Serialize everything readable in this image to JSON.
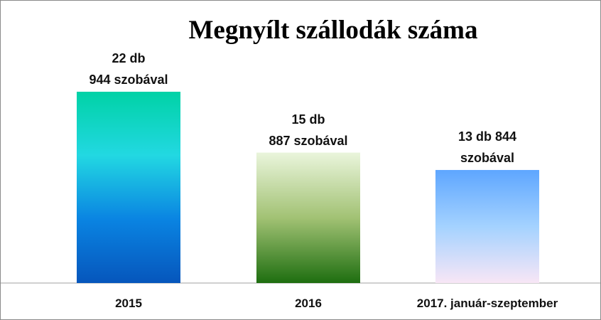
{
  "chart_data": {
    "type": "bar",
    "title": "Megnyílt szállodák száma",
    "categories": [
      "2015",
      "2016",
      "2017. január-szeptember"
    ],
    "values": [
      22,
      15,
      13
    ],
    "value_labels": [
      "22 db\n944 szobával",
      "15 db\n887 szobával",
      "13 db 844\nszobával"
    ],
    "colors": [
      [
        "#00d2a6",
        "#22d8e2",
        "#0a84e2",
        "#0656bc"
      ],
      [
        "#eaf5dc",
        "#a2c274",
        "#1e6e10"
      ],
      [
        "#5ea6ff",
        "#a4d2ff",
        "#f8e6f6"
      ]
    ]
  }
}
